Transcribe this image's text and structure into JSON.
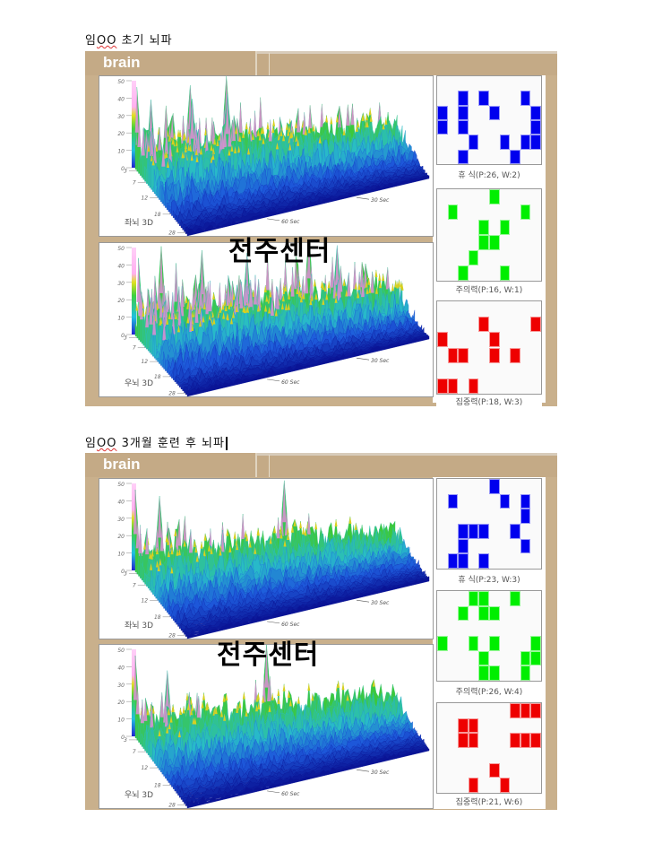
{
  "sections": [
    {
      "caption_name": "임",
      "caption_mark": "OO",
      "caption_rest": " 초기 뇌파",
      "brand": "brain",
      "watermark": "전주센터",
      "plots": [
        {
          "label": "좌뇌 3D",
          "y_ticks": [
            "50",
            "40",
            "30",
            "20",
            "10",
            "0"
          ],
          "depth_ticks": [
            "3",
            "7",
            "12",
            "18",
            "28"
          ],
          "time_ticks": [
            "60 Sec",
            "30 Sec"
          ]
        },
        {
          "label": "우뇌 3D",
          "y_ticks": [
            "50",
            "40",
            "30",
            "20",
            "10",
            "0"
          ],
          "depth_ticks": [
            "3",
            "7",
            "12",
            "18",
            "28"
          ],
          "time_ticks": [
            "60 Sec",
            "30 Sec"
          ]
        }
      ],
      "grids": [
        {
          "label": "휴  식(P:26, W:2)",
          "color": "#0000ee",
          "cells": [
            [
              1,
              2
            ],
            [
              1,
              4
            ],
            [
              1,
              8
            ],
            [
              2,
              0
            ],
            [
              2,
              2
            ],
            [
              2,
              5
            ],
            [
              2,
              9
            ],
            [
              3,
              0
            ],
            [
              3,
              2
            ],
            [
              3,
              9
            ],
            [
              4,
              3
            ],
            [
              4,
              6
            ],
            [
              4,
              8
            ],
            [
              4,
              9
            ],
            [
              5,
              2
            ],
            [
              5,
              7
            ]
          ]
        },
        {
          "label": "주의력(P:16, W:1)",
          "color": "#00ee00",
          "cells": [
            [
              0,
              5
            ],
            [
              1,
              1
            ],
            [
              1,
              8
            ],
            [
              2,
              4
            ],
            [
              2,
              6
            ],
            [
              3,
              4
            ],
            [
              3,
              5
            ],
            [
              4,
              3
            ],
            [
              5,
              2
            ],
            [
              5,
              6
            ]
          ]
        },
        {
          "label": "집중력(P:18, W:3)",
          "color": "#ee0000",
          "cells": [
            [
              1,
              4
            ],
            [
              1,
              9
            ],
            [
              2,
              0
            ],
            [
              2,
              5
            ],
            [
              3,
              1
            ],
            [
              3,
              2
            ],
            [
              3,
              5
            ],
            [
              3,
              7
            ],
            [
              5,
              0
            ],
            [
              5,
              1
            ],
            [
              5,
              3
            ]
          ]
        }
      ]
    },
    {
      "caption_name": "임",
      "caption_mark": "OO",
      "caption_rest": " 3개월 훈련 후 뇌파",
      "brand": "brain",
      "watermark": "전주센터",
      "plots": [
        {
          "label": "좌뇌 3D",
          "y_ticks": [
            "50",
            "40",
            "30",
            "20",
            "10",
            "0"
          ],
          "depth_ticks": [
            "3",
            "7",
            "12",
            "18",
            "28"
          ],
          "time_ticks": [
            "60 Sec",
            "30 Sec"
          ]
        },
        {
          "label": "우뇌 3D",
          "y_ticks": [
            "50",
            "40",
            "30",
            "20",
            "10",
            "0"
          ],
          "depth_ticks": [
            "3",
            "7",
            "12",
            "18",
            "28"
          ],
          "time_ticks": [
            "60 Sec",
            "30 Sec"
          ]
        }
      ],
      "grids": [
        {
          "label": "휴  식(P:23, W:3)",
          "color": "#0000ee",
          "cells": [
            [
              0,
              5
            ],
            [
              1,
              1
            ],
            [
              1,
              6
            ],
            [
              1,
              8
            ],
            [
              2,
              8
            ],
            [
              3,
              2
            ],
            [
              3,
              3
            ],
            [
              3,
              4
            ],
            [
              3,
              7
            ],
            [
              4,
              2
            ],
            [
              4,
              8
            ],
            [
              5,
              1
            ],
            [
              5,
              2
            ],
            [
              5,
              4
            ]
          ]
        },
        {
          "label": "주의력(P:26, W:4)",
          "color": "#00ee00",
          "cells": [
            [
              0,
              3
            ],
            [
              0,
              4
            ],
            [
              0,
              7
            ],
            [
              1,
              2
            ],
            [
              1,
              4
            ],
            [
              1,
              5
            ],
            [
              3,
              0
            ],
            [
              3,
              3
            ],
            [
              3,
              5
            ],
            [
              3,
              9
            ],
            [
              4,
              4
            ],
            [
              4,
              8
            ],
            [
              4,
              9
            ],
            [
              5,
              4
            ],
            [
              5,
              5
            ],
            [
              5,
              8
            ]
          ]
        },
        {
          "label": "집중력(P:21, W:6)",
          "color": "#ee0000",
          "cells": [
            [
              0,
              7
            ],
            [
              0,
              8
            ],
            [
              0,
              9
            ],
            [
              1,
              2
            ],
            [
              1,
              3
            ],
            [
              2,
              2
            ],
            [
              2,
              3
            ],
            [
              2,
              7
            ],
            [
              2,
              8
            ],
            [
              2,
              9
            ],
            [
              4,
              5
            ],
            [
              5,
              3
            ],
            [
              5,
              6
            ]
          ]
        }
      ]
    }
  ]
}
